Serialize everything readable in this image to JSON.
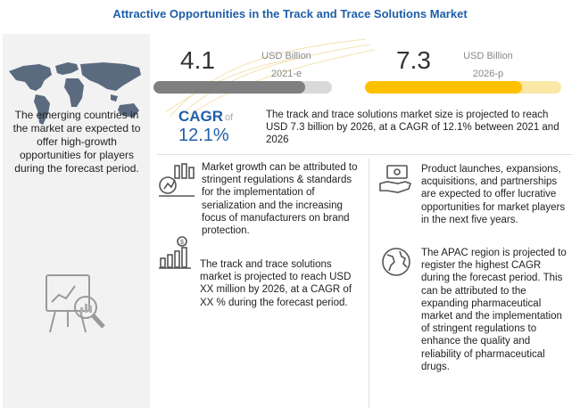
{
  "title": "Attractive Opportunities in the Track and Trace Solutions Market",
  "left_panel": {
    "map_icon": "world-map-icon",
    "text": "The emerging countries in the market are expected to offer high-growth opportunities for players during the forecast period.",
    "analytics_icon": "magnifier-chart-icon"
  },
  "stat_2021": {
    "value": "4.1",
    "unit": "USD Billion",
    "year": "2021-e",
    "fill_fraction": 0.85
  },
  "stat_2026": {
    "value": "7.3",
    "unit": "USD Billion",
    "year": "2026-p",
    "fill_fraction": 0.8
  },
  "cagr": {
    "label": "CAGR",
    "of": "of",
    "value": "12.1%"
  },
  "summary_text": "The track and trace solutions market size is projected to reach USD 7.3 billion by 2026, at a CAGR of 12.1% between 2021 and 2026",
  "insights": [
    {
      "icon": "growth-chart-icon",
      "text": "Market growth can be attributed to stringent regulations & standards for the implementation of serialization and the increasing focus of manufacturers on brand protection."
    },
    {
      "icon": "bar-chart-dollar-icon",
      "text": "The track and trace solutions market is projected to reach USD XX million  by 2026, at a CAGR of XX % during the forecast period."
    },
    {
      "icon": "money-hand-icon",
      "text": "Product launches, expansions, acquisitions, and partnerships are expected to offer lucrative opportunities for market players in the next five years."
    },
    {
      "icon": "globe-icon",
      "text": "The APAC region is projected to register the highest CAGR during the forecast period. This can be attributed to the expanding pharmaceutical market and the implementation of stringent regulations to enhance the quality and reliability of pharmaceutical drugs."
    }
  ],
  "colors": {
    "title": "#1f5fa8",
    "bar_2021": "#7f7f7f",
    "bar_2026": "#ffc000",
    "cagr": "#1f5fa8",
    "panel_bg": "#f2f2f2"
  }
}
